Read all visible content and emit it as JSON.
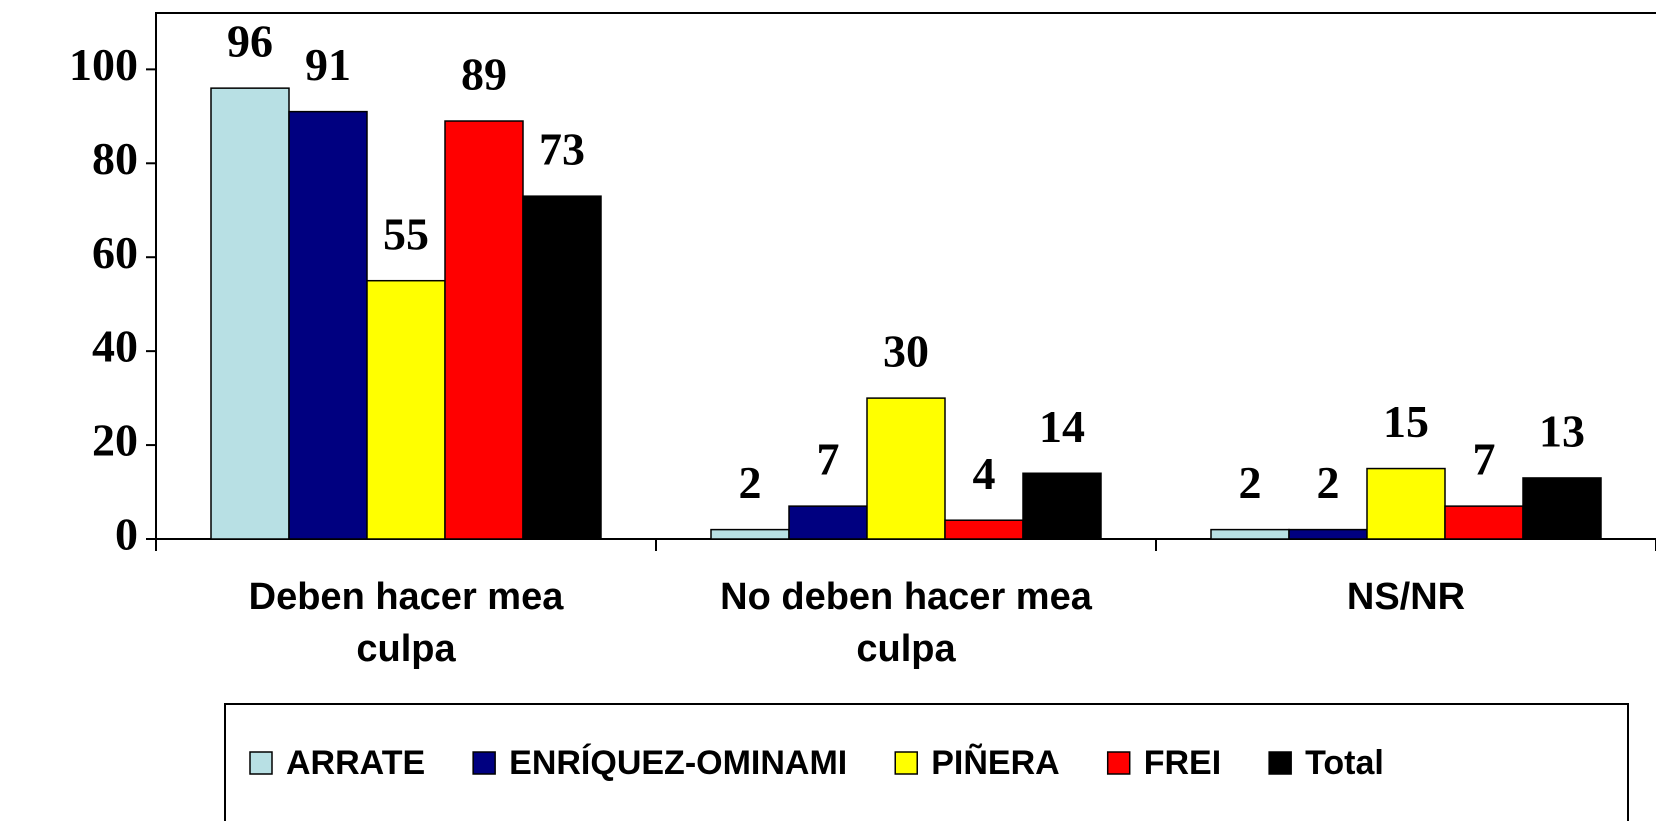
{
  "chart_data": {
    "type": "bar",
    "categories": [
      "Deben hacer mea culpa",
      "No deben hacer mea culpa",
      "NS/NR"
    ],
    "series": [
      {
        "name": "ARRATE",
        "color": "#b8e0e4",
        "values": [
          96,
          2,
          2
        ]
      },
      {
        "name": "ENRÍQUEZ-OMINAMI",
        "color": "#000080",
        "values": [
          91,
          7,
          2
        ]
      },
      {
        "name": "PIÑERA",
        "color": "#ffff00",
        "values": [
          55,
          30,
          15
        ]
      },
      {
        "name": "FREI",
        "color": "#ff0000",
        "values": [
          89,
          4,
          7
        ]
      },
      {
        "name": "Total",
        "color": "#000000",
        "values": [
          73,
          14,
          13
        ]
      }
    ],
    "ylim": [
      0,
      112
    ],
    "yticks": [
      0,
      20,
      40,
      60,
      80,
      100
    ],
    "legend": "bottom"
  }
}
